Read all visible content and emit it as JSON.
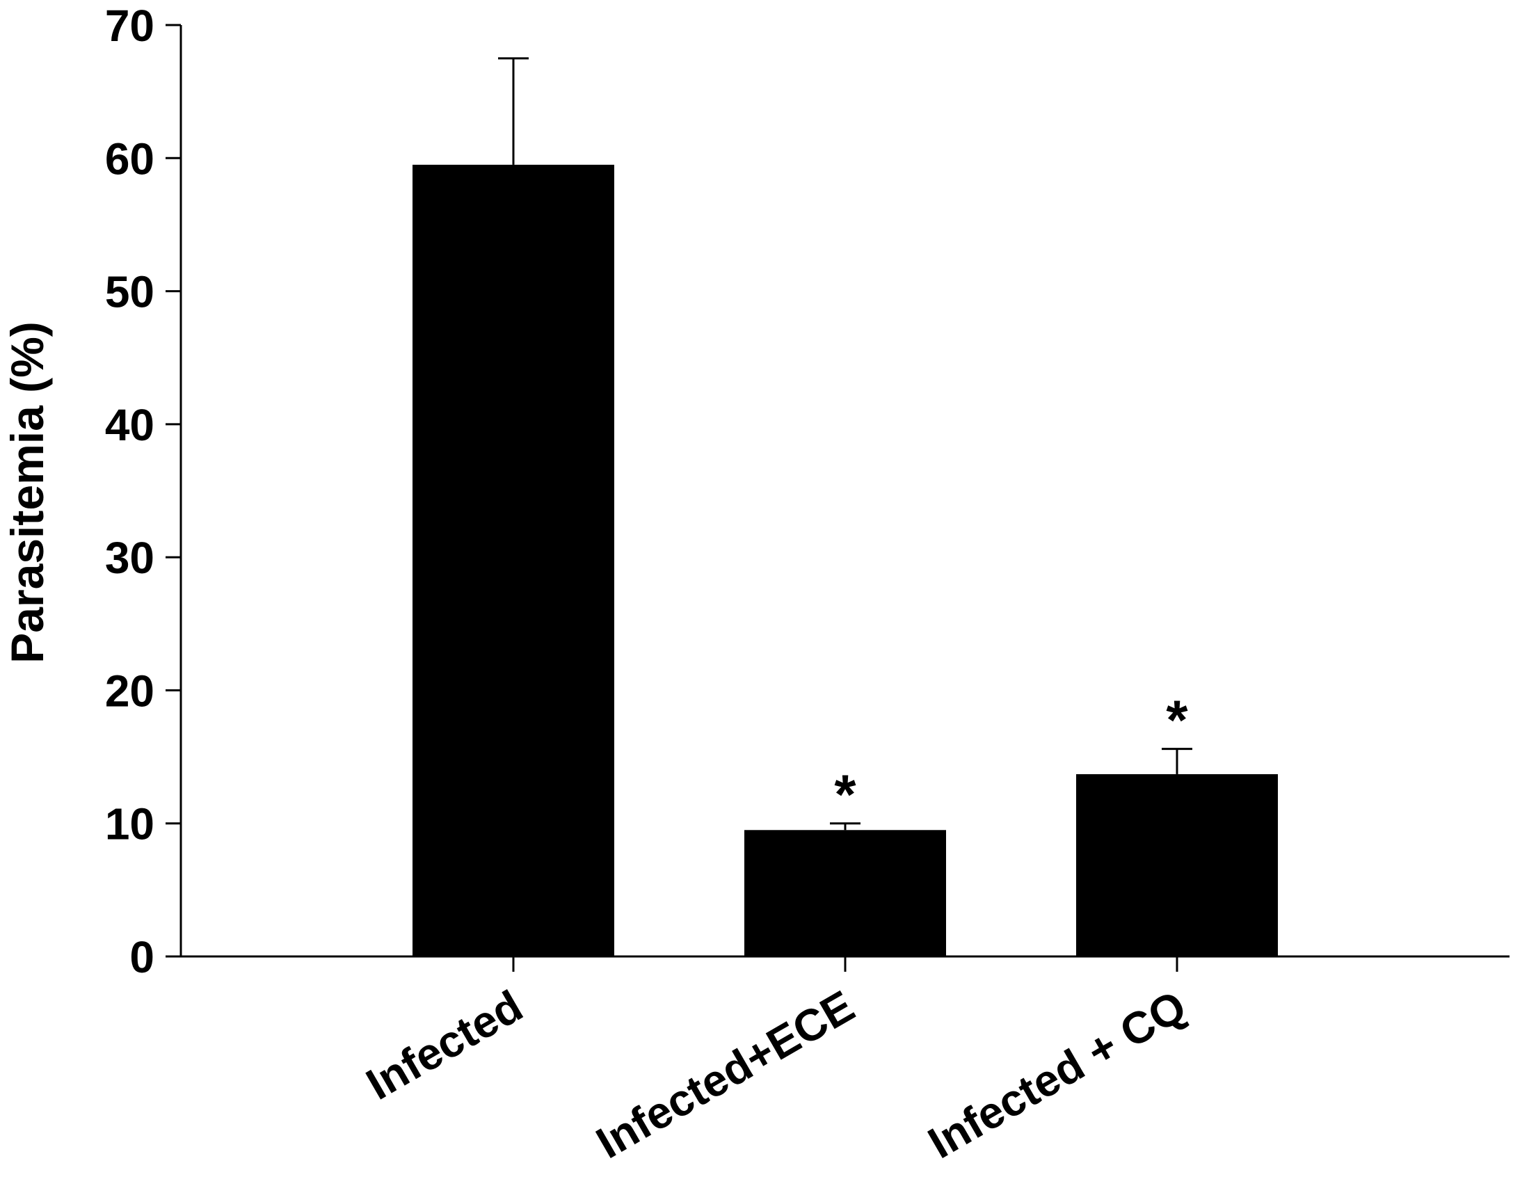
{
  "chart_data": {
    "type": "bar",
    "categories": [
      "Infected",
      "Infected+ECE",
      "Infected + CQ"
    ],
    "values": [
      59.5,
      9.5,
      13.7
    ],
    "error_upper": [
      8.0,
      0.5,
      1.9
    ],
    "annotations": [
      "",
      "*",
      "*"
    ],
    "ylabel": "Parasitemia (%)",
    "xlabel": "",
    "ylim": [
      0,
      70
    ],
    "yticks": [
      0,
      10,
      20,
      30,
      40,
      50,
      60,
      70
    ],
    "bar_color": "#000000",
    "grid": false
  }
}
